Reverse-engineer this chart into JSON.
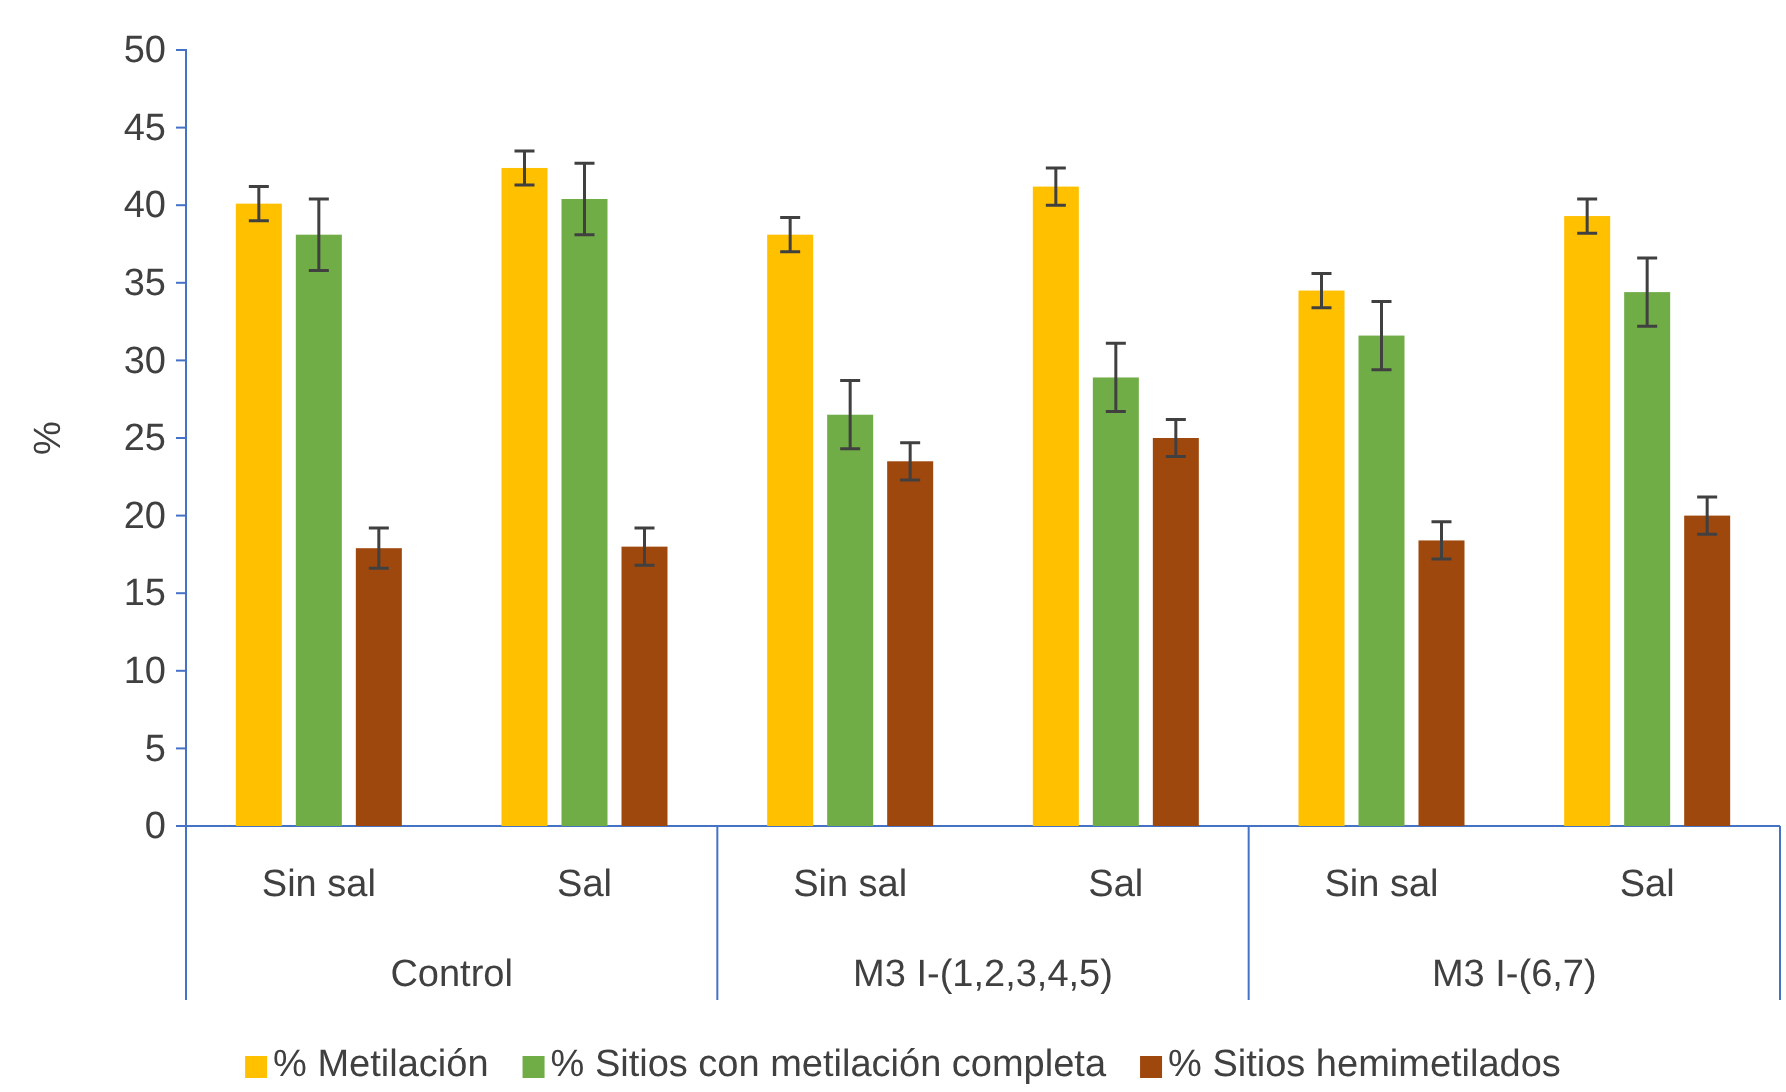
{
  "chart_data": {
    "type": "bar",
    "ylabel": "%",
    "categories": [
      "Sin sal",
      "Sal",
      "Sin sal",
      "Sal",
      "Sin sal",
      "Sal"
    ],
    "annotations": [
      "Control",
      "M3 I-(1,2,3,4,5)",
      "M3 I-(6,7)"
    ],
    "ylim": [
      0,
      50
    ],
    "yticks": [
      0,
      5,
      10,
      15,
      20,
      25,
      30,
      35,
      40,
      45,
      50
    ],
    "grid": false,
    "legend": "bottom",
    "series": [
      {
        "name": "% Metilación",
        "color": "#ffc000",
        "values": [
          40.1,
          42.4,
          38.1,
          41.2,
          34.5,
          39.3
        ],
        "errors": [
          1.1,
          1.1,
          1.1,
          1.2,
          1.1,
          1.1
        ]
      },
      {
        "name": "% Sitios con metilación completa",
        "color": "#70ad47",
        "values": [
          38.1,
          40.4,
          26.5,
          28.9,
          31.6,
          34.4
        ],
        "errors": [
          2.3,
          2.3,
          2.2,
          2.2,
          2.2,
          2.2
        ]
      },
      {
        "name": "% Sitios hemimetilados",
        "color": "#9e480e",
        "values": [
          17.9,
          18.0,
          23.5,
          25.0,
          18.4,
          20.0
        ],
        "errors": [
          1.3,
          1.2,
          1.2,
          1.2,
          1.2,
          1.2
        ]
      }
    ]
  }
}
